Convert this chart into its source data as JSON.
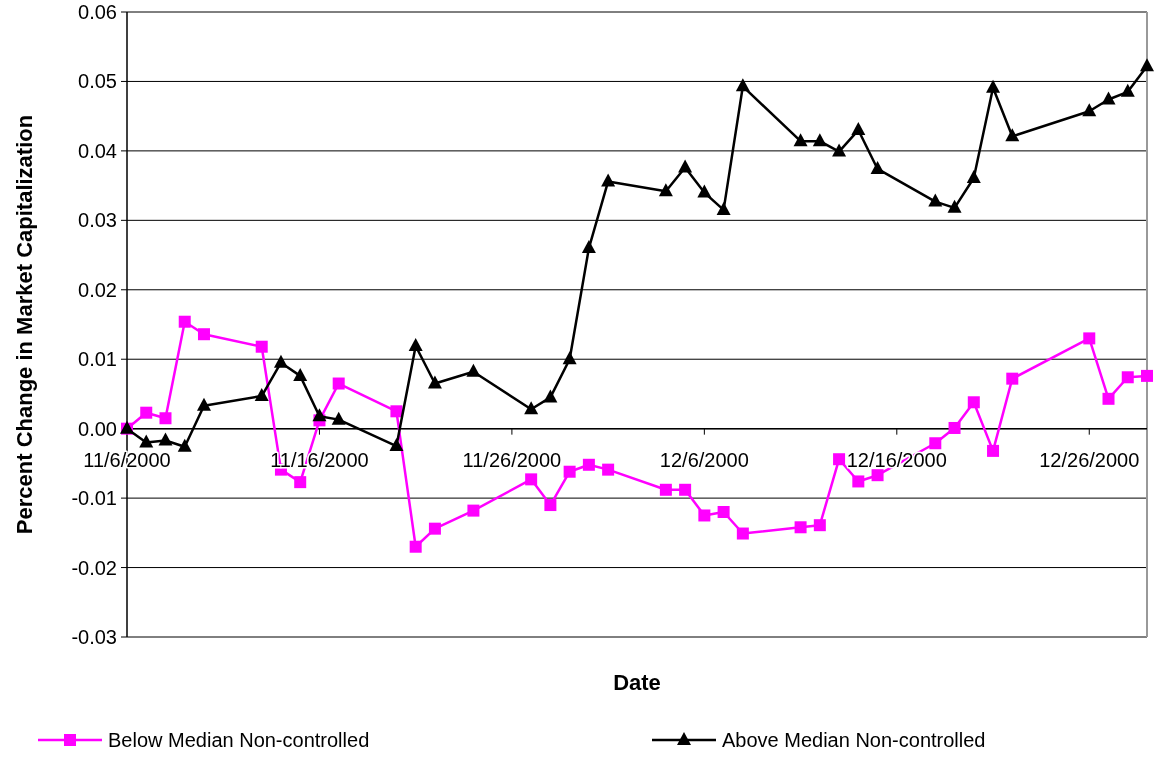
{
  "chart_data": {
    "type": "line",
    "xlabel": "Date",
    "ylabel": "Percent Change in Market Capitalization",
    "x": [
      "2000-11-06",
      "2000-11-07",
      "2000-11-08",
      "2000-11-09",
      "2000-11-10",
      "2000-11-13",
      "2000-11-14",
      "2000-11-15",
      "2000-11-16",
      "2000-11-17",
      "2000-11-20",
      "2000-11-21",
      "2000-11-22",
      "2000-11-24",
      "2000-11-27",
      "2000-11-28",
      "2000-11-29",
      "2000-11-30",
      "2000-12-01",
      "2000-12-04",
      "2000-12-05",
      "2000-12-06",
      "2000-12-07",
      "2000-12-08",
      "2000-12-11",
      "2000-12-12",
      "2000-12-13",
      "2000-12-14",
      "2000-12-15",
      "2000-12-18",
      "2000-12-19",
      "2000-12-20",
      "2000-12-21",
      "2000-12-22",
      "2000-12-26",
      "2000-12-27",
      "2000-12-28",
      "2000-12-29"
    ],
    "series": [
      {
        "name": "Below Median Non-controlled",
        "color": "#ff00ff",
        "marker": "square",
        "values": [
          0,
          0.0023,
          0.0015,
          0.0154,
          0.0136,
          0.0118,
          -0.0059,
          -0.0077,
          0.0012,
          0.0065,
          0.0025,
          -0.017,
          -0.0144,
          -0.0118,
          -0.0073,
          -0.011,
          -0.0062,
          -0.0052,
          -0.0059,
          -0.0088,
          -0.0088,
          -0.0125,
          -0.012,
          -0.0151,
          -0.0142,
          -0.0139,
          -0.0044,
          -0.0076,
          -0.0067,
          -0.0021,
          0.0001,
          0.0038,
          -0.0032,
          0.0072,
          0.013,
          0.0043,
          0.0074,
          0.0076
        ]
      },
      {
        "name": "Above Median Non-controlled",
        "color": "#000000",
        "marker": "triangle",
        "values": [
          0,
          -0.002,
          -0.0017,
          -0.0026,
          0.0033,
          0.0047,
          0.0095,
          0.0076,
          0.0018,
          0.0013,
          -0.0025,
          0.0119,
          0.0065,
          0.0082,
          0.0028,
          0.0045,
          0.01,
          0.026,
          0.0356,
          0.0342,
          0.0376,
          0.034,
          0.0315,
          0.0493,
          0.0414,
          0.0414,
          0.0399,
          0.043,
          0.0374,
          0.0327,
          0.0318,
          0.0361,
          0.0491,
          0.0421,
          0.0457,
          0.0474,
          0.0485,
          0.0522
        ]
      }
    ],
    "xlim": [
      "2000-11-06",
      "2000-12-29"
    ],
    "xticks": [
      {
        "value": "2000-11-06",
        "label": "11/6/2000"
      },
      {
        "value": "2000-11-16",
        "label": "11/16/2000"
      },
      {
        "value": "2000-11-26",
        "label": "11/26/2000"
      },
      {
        "value": "2000-12-06",
        "label": "12/6/2000"
      },
      {
        "value": "2000-12-16",
        "label": "12/16/2000"
      },
      {
        "value": "2000-12-26",
        "label": "12/26/2000"
      }
    ],
    "ylim": [
      -0.03,
      0.06
    ],
    "yticks": [
      -0.03,
      -0.02,
      -0.01,
      {
        "value": 0,
        "label": "0.00"
      },
      0.01,
      0.02,
      0.03,
      0.04,
      0.05,
      0.06
    ],
    "grid": "y",
    "legend": "bottom",
    "line_style": "solid"
  }
}
